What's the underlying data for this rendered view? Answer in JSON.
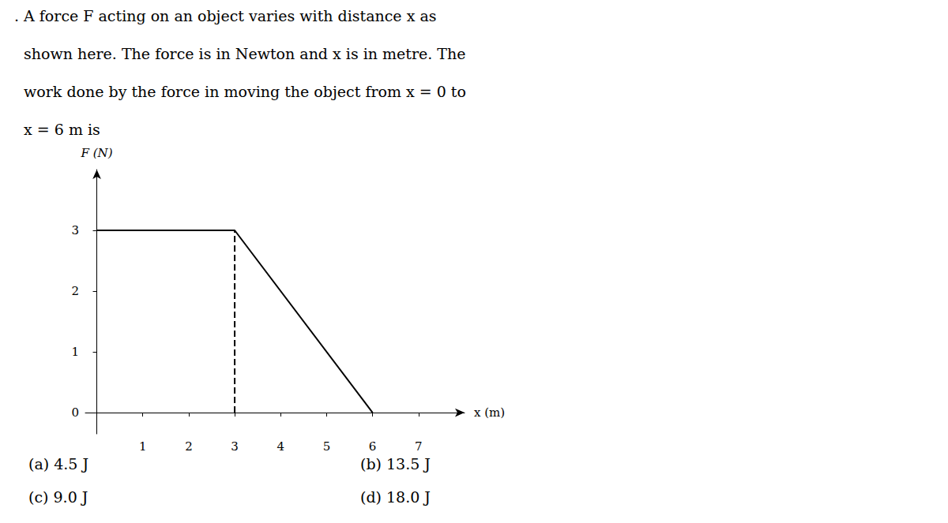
{
  "chart_data": {
    "type": "line",
    "question": [
      ". A force F acting on an object varies with distance x as",
      "  shown here. The force is in Newton and x is in metre. The",
      "  work done by the force in moving the object from x = 0 to",
      "  x = 6 m is"
    ],
    "options": [
      "(a) 4.5 J",
      "(b) 13.5 J",
      "(c) 9.0 J",
      "(d) 18.0 J"
    ],
    "xlabel": "x (m)",
    "ylabel": "F (N)",
    "series": [
      {
        "x": [
          0,
          3,
          6
        ],
        "values": [
          3,
          3,
          0
        ],
        "color": "#000000",
        "line_style": "solid"
      },
      {
        "x": [
          3,
          3
        ],
        "values": [
          0,
          3
        ],
        "color": "#000000",
        "line_style": "dashed"
      }
    ],
    "xlim": [
      -0.25,
      8.0
    ],
    "ylim": [
      -0.35,
      4.0
    ],
    "xticks": [
      1,
      2,
      3,
      4,
      5,
      6,
      7
    ],
    "yticks": [
      0,
      1,
      2,
      3
    ],
    "grid": false
  }
}
